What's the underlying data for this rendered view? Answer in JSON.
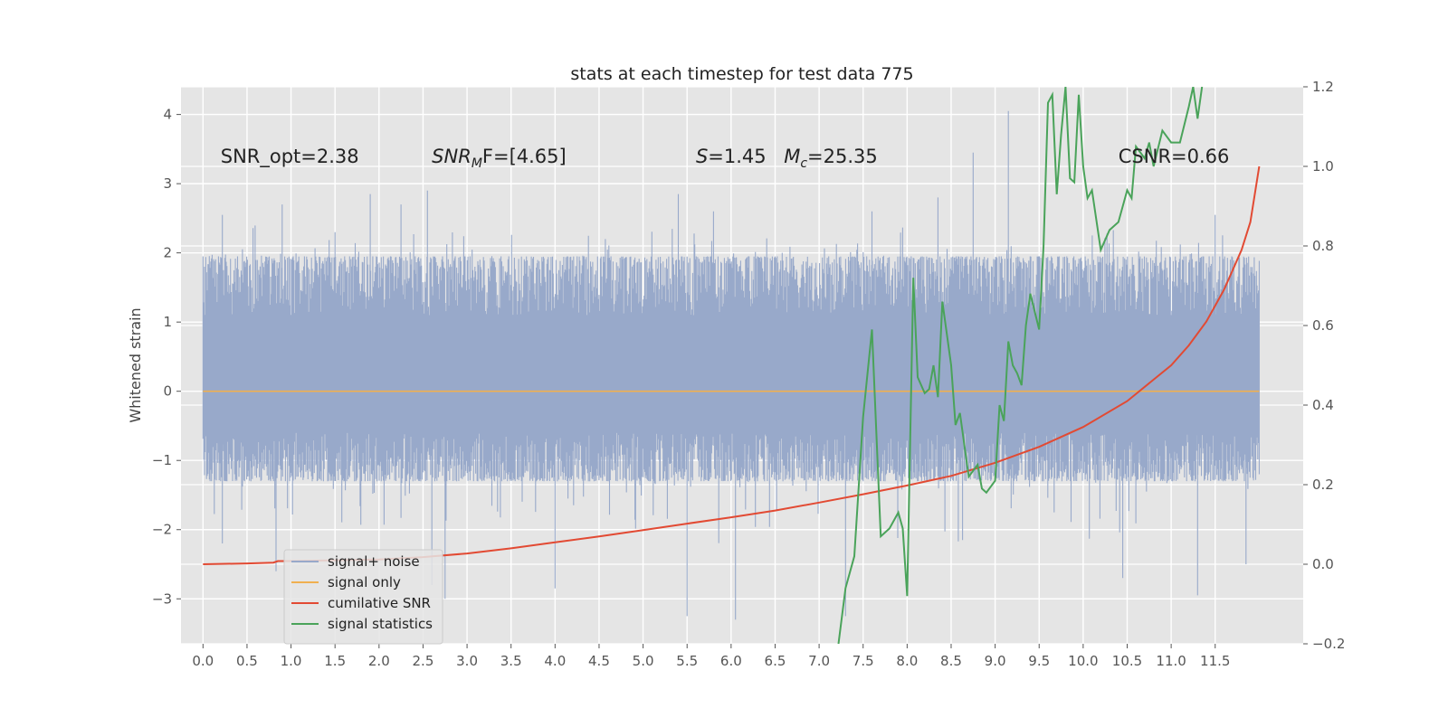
{
  "chart_data": {
    "type": "line",
    "title": "stats at each timestep for test data 775",
    "ylabel": "Whitened strain",
    "xlim": [
      -0.25,
      12.5
    ],
    "ylim": [
      -3.65,
      4.4
    ],
    "y2lim": [
      -0.2,
      1.2
    ],
    "x_ticks": [
      0.0,
      0.5,
      1.0,
      1.5,
      2.0,
      2.5,
      3.0,
      3.5,
      4.0,
      4.5,
      5.0,
      5.5,
      6.0,
      6.5,
      7.0,
      7.5,
      8.0,
      8.5,
      9.0,
      9.5,
      10.0,
      10.5,
      11.0,
      11.5
    ],
    "x_tick_labels": [
      "0.0",
      "0.5",
      "1.0",
      "1.5",
      "2.0",
      "2.5",
      "3.0",
      "3.5",
      "4.0",
      "4.5",
      "5.0",
      "5.5",
      "6.0",
      "6.5",
      "7.0",
      "7.5",
      "8.0",
      "8.5",
      "9.0",
      "9.5",
      "10.0",
      "10.5",
      "11.0",
      "11.5"
    ],
    "y_ticks": [
      -3,
      -2,
      -1,
      0,
      1,
      2,
      3,
      4
    ],
    "y_tick_labels": [
      "−3",
      "−2",
      "−1",
      "0",
      "1",
      "2",
      "3",
      "4"
    ],
    "y2_ticks": [
      -0.2,
      0.0,
      0.2,
      0.4,
      0.6,
      0.8,
      1.0,
      1.2
    ],
    "y2_tick_labels": [
      "−0.2",
      "0.0",
      "0.2",
      "0.4",
      "0.6",
      "0.8",
      "1.0",
      "1.2"
    ],
    "grid": true,
    "legend_position": "lower-left",
    "annotations": [
      {
        "prefix": "SNR_opt=2.38",
        "x": 0.2,
        "y": 3.3
      },
      {
        "sym": "SNR",
        "sub": "M",
        "suffix": "F=[4.65]",
        "x": 2.6,
        "y": 3.3
      },
      {
        "sym": "S",
        "suffix": "=1.45",
        "x": 5.6,
        "y": 3.3
      },
      {
        "sym": "M",
        "sub": "c",
        "suffix": "=25.35",
        "x": 6.6,
        "y": 3.3
      },
      {
        "prefix": "CSNR=0.66",
        "x": 10.4,
        "y": 3.3
      }
    ],
    "series": [
      {
        "name": "signal+ noise",
        "axis": "left",
        "color": "#98a9ca",
        "style": "noise-band",
        "x_range": [
          0.0,
          12.0
        ],
        "typical_range": [
          -1.3,
          1.95
        ],
        "extremes": [
          {
            "x": 0.22,
            "y": 2.55
          },
          {
            "x": 0.22,
            "y": -2.2
          },
          {
            "x": 0.9,
            "y": 2.7
          },
          {
            "x": 0.83,
            "y": -2.6
          },
          {
            "x": 1.5,
            "y": 2.3
          },
          {
            "x": 1.9,
            "y": 2.85
          },
          {
            "x": 2.25,
            "y": 2.7
          },
          {
            "x": 2.6,
            "y": -2.8
          },
          {
            "x": 2.55,
            "y": 2.9
          },
          {
            "x": 2.75,
            "y": -3.0
          },
          {
            "x": 4.0,
            "y": -2.85
          },
          {
            "x": 5.4,
            "y": 2.85
          },
          {
            "x": 5.5,
            "y": -3.25
          },
          {
            "x": 5.8,
            "y": 2.6
          },
          {
            "x": 6.05,
            "y": -3.3
          },
          {
            "x": 7.3,
            "y": -3.25
          },
          {
            "x": 7.6,
            "y": 2.6
          },
          {
            "x": 8.35,
            "y": 2.8
          },
          {
            "x": 8.75,
            "y": 3.45
          },
          {
            "x": 9.15,
            "y": 4.05
          },
          {
            "x": 10.45,
            "y": -2.7
          },
          {
            "x": 11.3,
            "y": -2.95
          },
          {
            "x": 11.85,
            "y": -2.5
          },
          {
            "x": 11.5,
            "y": 2.55
          }
        ]
      },
      {
        "name": "signal only",
        "axis": "left",
        "color": "#f0b050",
        "x": [
          0.0,
          12.0
        ],
        "y": [
          0.0,
          0.0
        ]
      },
      {
        "name": "cumilative SNR",
        "axis": "right",
        "color": "#e24a33",
        "x": [
          0.0,
          0.5,
          0.8,
          0.85,
          1.0,
          1.5,
          2.0,
          2.5,
          3.0,
          3.5,
          4.0,
          4.5,
          5.0,
          5.5,
          6.0,
          6.5,
          7.0,
          7.5,
          8.0,
          8.5,
          9.0,
          9.5,
          10.0,
          10.5,
          11.0,
          11.2,
          11.4,
          11.6,
          11.8,
          11.9,
          12.0
        ],
        "y": [
          0.0,
          0.002,
          0.004,
          0.008,
          0.008,
          0.01,
          0.012,
          0.018,
          0.027,
          0.04,
          0.055,
          0.07,
          0.086,
          0.102,
          0.118,
          0.135,
          0.155,
          0.176,
          0.198,
          0.222,
          0.255,
          0.295,
          0.345,
          0.41,
          0.5,
          0.55,
          0.61,
          0.69,
          0.79,
          0.86,
          1.0
        ]
      },
      {
        "name": "signal statistics",
        "axis": "right",
        "color": "#4aa35a",
        "x": [
          7.22,
          7.3,
          7.4,
          7.5,
          7.6,
          7.7,
          7.8,
          7.9,
          7.95,
          8.0,
          8.07,
          8.12,
          8.2,
          8.25,
          8.3,
          8.35,
          8.4,
          8.5,
          8.55,
          8.6,
          8.7,
          8.8,
          8.85,
          8.9,
          9.0,
          9.05,
          9.1,
          9.15,
          9.2,
          9.25,
          9.3,
          9.35,
          9.4,
          9.5,
          9.55,
          9.6,
          9.65,
          9.7,
          9.75,
          9.8,
          9.85,
          9.9,
          9.95,
          10.0,
          10.05,
          10.1,
          10.2,
          10.3,
          10.4,
          10.5,
          10.55,
          10.6,
          10.7,
          10.75,
          10.8,
          10.9,
          11.0,
          11.1,
          11.2,
          11.25,
          11.3,
          11.35
        ],
        "y": [
          -0.2,
          -0.06,
          0.02,
          0.37,
          0.59,
          0.07,
          0.09,
          0.13,
          0.09,
          -0.08,
          0.72,
          0.47,
          0.43,
          0.44,
          0.5,
          0.42,
          0.66,
          0.5,
          0.35,
          0.38,
          0.22,
          0.25,
          0.19,
          0.18,
          0.21,
          0.4,
          0.36,
          0.56,
          0.5,
          0.48,
          0.45,
          0.6,
          0.68,
          0.59,
          0.8,
          1.16,
          1.18,
          0.93,
          1.08,
          1.2,
          0.97,
          0.96,
          1.18,
          1.0,
          0.92,
          0.94,
          0.79,
          0.84,
          0.86,
          0.94,
          0.92,
          1.05,
          1.02,
          1.06,
          1.0,
          1.09,
          1.06,
          1.06,
          1.15,
          1.2,
          1.12,
          1.2
        ]
      }
    ]
  }
}
